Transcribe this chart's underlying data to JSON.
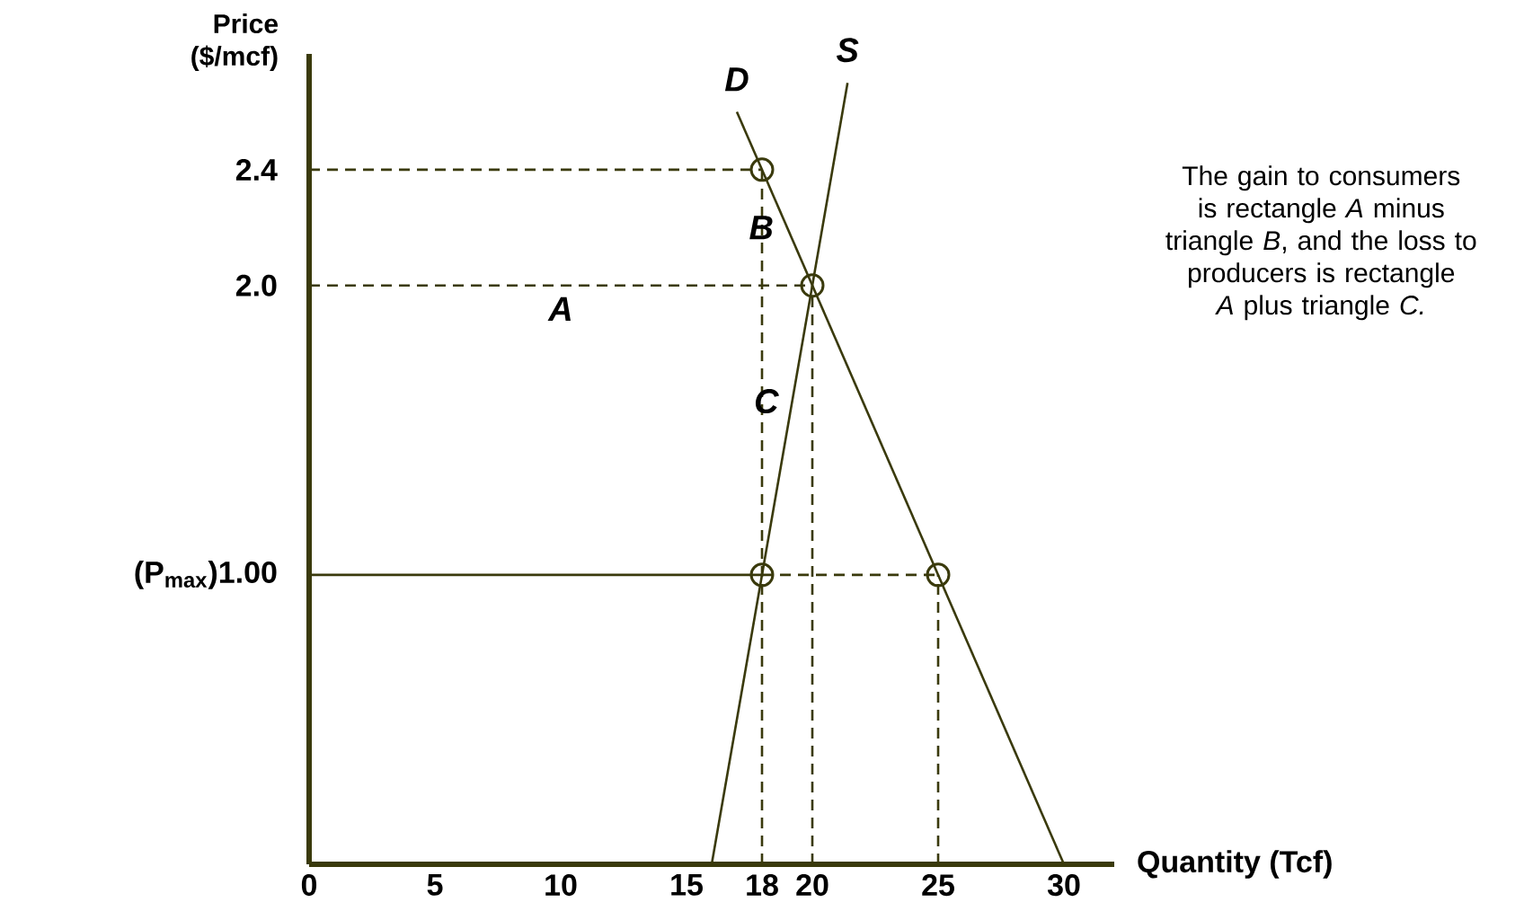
{
  "chart_data": {
    "type": "line",
    "xlabel": "Quantity (Tcf)",
    "ylabel": "Price ($/mcf)",
    "xlim": [
      0,
      32
    ],
    "ylim": [
      0,
      2.8
    ],
    "xticks": [
      0,
      5,
      10,
      15,
      18,
      20,
      25,
      30
    ],
    "yticks": [
      {
        "value": 1,
        "label": "(P$_{max}$)1.00"
      },
      {
        "value": 2,
        "label": "2.0"
      },
      2.4
    ],
    "series": [
      {
        "name": "D",
        "color": "#3a3a0c",
        "x": [
          17,
          30
        ],
        "values": [
          2.6,
          0
        ]
      },
      {
        "name": "S",
        "color": "#3a3a0c",
        "x": [
          16,
          21.4
        ],
        "values": [
          0,
          2.7
        ]
      },
      {
        "color": "#3a3a0c",
        "line_style": "dashed",
        "x": [
          0,
          18
        ],
        "values": [
          2.4,
          2.4
        ]
      },
      {
        "color": "#3a3a0c",
        "line_style": "dashed",
        "x": [
          18,
          18
        ],
        "values": [
          0,
          2.4
        ]
      },
      {
        "color": "#3a3a0c",
        "line_style": "dashed",
        "x": [
          0,
          20
        ],
        "values": [
          2,
          2
        ]
      },
      {
        "color": "#3a3a0c",
        "line_style": "dashed",
        "x": [
          20,
          20
        ],
        "values": [
          0,
          2
        ]
      },
      {
        "color": "#3a3a0c",
        "line_style": "solid",
        "x": [
          0,
          18
        ],
        "values": [
          1,
          1
        ]
      },
      {
        "color": "#3a3a0c",
        "line_style": "dashed",
        "x": [
          18,
          25
        ],
        "values": [
          1,
          1
        ]
      },
      {
        "color": "#3a3a0c",
        "line_style": "dashed",
        "x": [
          25,
          25
        ],
        "values": [
          0,
          1
        ]
      },
      {
        "type": "scatter",
        "color": "#3a3a0c",
        "marker": "circle",
        "x": [
          18,
          20,
          18,
          25
        ],
        "values": [
          2.4,
          2,
          1,
          1
        ]
      }
    ],
    "annotations": [
      {
        "text": "A",
        "x": 10,
        "y": 2
      },
      {
        "text": "B",
        "x": 19,
        "y": 2.2
      },
      {
        "text": "C",
        "x": 19.2,
        "y": 1.6
      },
      "The gain to consumers is rectangle *A* minus triangle *B*, and the loss to producers is rectangle *A* plus triangle *C.*"
    ]
  }
}
